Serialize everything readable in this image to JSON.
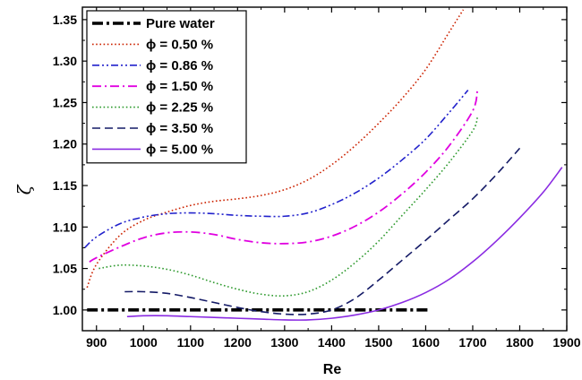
{
  "chart_data": {
    "type": "line",
    "title": "",
    "xlabel": "Re",
    "ylabel": "ζ",
    "xlim": [
      870,
      1900
    ],
    "ylim": [
      0.975,
      1.365
    ],
    "x_ticks": [
      900,
      1000,
      1100,
      1200,
      1300,
      1400,
      1500,
      1600,
      1700,
      1800,
      1900
    ],
    "y_ticks": [
      1.0,
      1.05,
      1.1,
      1.15,
      1.2,
      1.25,
      1.3,
      1.35
    ],
    "x_tick_labels": [
      "900",
      "1000",
      "1100",
      "1200",
      "1300",
      "1400",
      "1500",
      "1600",
      "1700",
      "1800",
      "1900"
    ],
    "y_tick_labels": [
      "1.00",
      "1.05",
      "1.10",
      "1.15",
      "1.20",
      "1.25",
      "1.30",
      "1.35"
    ],
    "grid": false,
    "legend_position": "top-left",
    "series": [
      {
        "name": "Pure water",
        "color": "#000000",
        "dash": "dashdot-thick",
        "x": [
          880,
          1610
        ],
        "y": [
          1.0,
          1.0
        ]
      },
      {
        "name": "ϕ = 0.50 %",
        "color": "#cc2200",
        "dash": "dotted",
        "x": [
          880,
          900,
          950,
          1000,
          1050,
          1100,
          1150,
          1200,
          1250,
          1300,
          1350,
          1400,
          1450,
          1500,
          1550,
          1600,
          1650,
          1680
        ],
        "y": [
          1.027,
          1.055,
          1.09,
          1.108,
          1.118,
          1.126,
          1.131,
          1.134,
          1.138,
          1.145,
          1.157,
          1.175,
          1.198,
          1.225,
          1.255,
          1.29,
          1.335,
          1.362
        ]
      },
      {
        "name": "ϕ = 0.86 %",
        "color": "#2222cc",
        "dash": "dashdotdot",
        "x": [
          875,
          900,
          950,
          1000,
          1050,
          1100,
          1150,
          1200,
          1250,
          1300,
          1350,
          1400,
          1450,
          1500,
          1550,
          1600,
          1650,
          1690
        ],
        "y": [
          1.075,
          1.088,
          1.104,
          1.112,
          1.116,
          1.117,
          1.116,
          1.114,
          1.113,
          1.113,
          1.117,
          1.127,
          1.141,
          1.159,
          1.181,
          1.206,
          1.238,
          1.265
        ]
      },
      {
        "name": "ϕ = 1.50 %",
        "color": "#e000e0",
        "dash": "dashdot",
        "x": [
          885,
          900,
          950,
          1000,
          1050,
          1100,
          1150,
          1200,
          1250,
          1300,
          1350,
          1400,
          1450,
          1500,
          1550,
          1600,
          1650,
          1700,
          1710
        ],
        "y": [
          1.058,
          1.063,
          1.076,
          1.087,
          1.093,
          1.094,
          1.091,
          1.085,
          1.081,
          1.08,
          1.082,
          1.089,
          1.101,
          1.118,
          1.14,
          1.166,
          1.198,
          1.24,
          1.265
        ]
      },
      {
        "name": "ϕ = 2.25 %",
        "color": "#2e9a2e",
        "dash": "dotted",
        "x": [
          905,
          950,
          1000,
          1050,
          1100,
          1150,
          1200,
          1250,
          1300,
          1350,
          1400,
          1450,
          1500,
          1550,
          1600,
          1650,
          1700,
          1710
        ],
        "y": [
          1.05,
          1.054,
          1.053,
          1.049,
          1.042,
          1.033,
          1.025,
          1.019,
          1.017,
          1.022,
          1.036,
          1.057,
          1.083,
          1.114,
          1.145,
          1.178,
          1.216,
          1.232
        ]
      },
      {
        "name": "ϕ = 3.50 %",
        "color": "#141a66",
        "dash": "dashed",
        "x": [
          960,
          1000,
          1050,
          1100,
          1150,
          1200,
          1250,
          1300,
          1350,
          1400,
          1450,
          1500,
          1550,
          1600,
          1650,
          1700,
          1750,
          1800
        ],
        "y": [
          1.022,
          1.022,
          1.02,
          1.015,
          1.009,
          1.003,
          0.998,
          0.995,
          0.995,
          1.0,
          1.014,
          1.036,
          1.06,
          1.084,
          1.109,
          1.134,
          1.163,
          1.195
        ]
      },
      {
        "name": "ϕ = 5.00 %",
        "color": "#8a2be2",
        "dash": "solid",
        "x": [
          965,
          1000,
          1050,
          1100,
          1150,
          1200,
          1250,
          1300,
          1350,
          1400,
          1450,
          1500,
          1550,
          1600,
          1650,
          1700,
          1750,
          1800,
          1850,
          1890
        ],
        "y": [
          0.992,
          0.993,
          0.993,
          0.992,
          0.991,
          0.99,
          0.989,
          0.988,
          0.988,
          0.99,
          0.994,
          1.0,
          1.009,
          1.021,
          1.037,
          1.058,
          1.083,
          1.111,
          1.142,
          1.172
        ]
      }
    ]
  }
}
